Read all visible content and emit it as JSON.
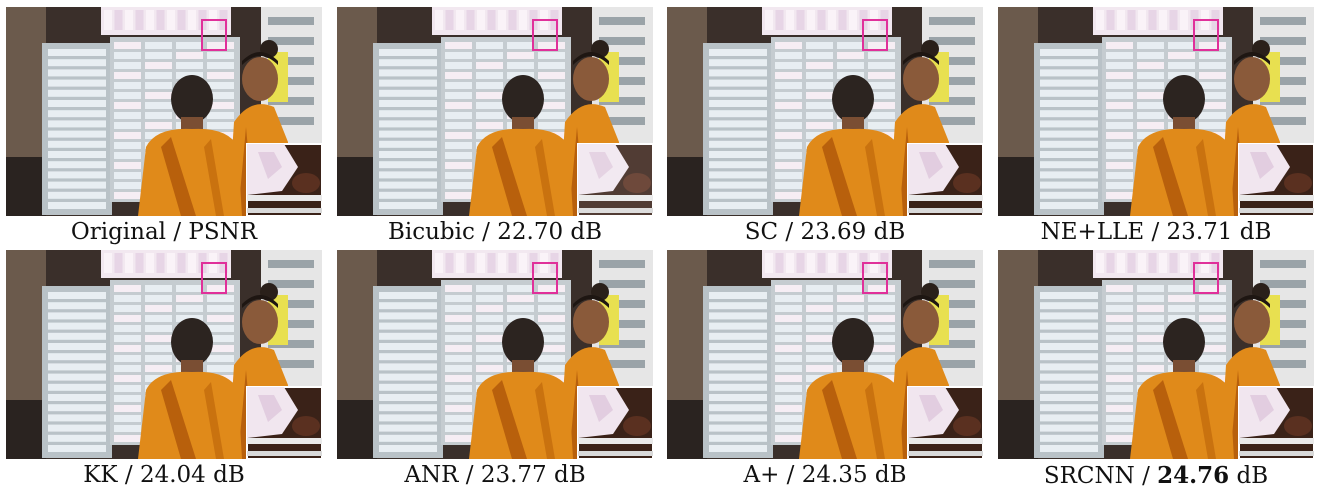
{
  "panels": [
    {
      "method": "Original",
      "sep": " / ",
      "value": "PSNR",
      "bold": false,
      "unit": ""
    },
    {
      "method": "Bicubic",
      "sep": " / ",
      "value": "22.70",
      "bold": false,
      "unit": " dB"
    },
    {
      "method": "SC",
      "sep": " / ",
      "value": "23.69",
      "bold": false,
      "unit": " dB"
    },
    {
      "method": "NE+LLE",
      "sep": " / ",
      "value": "23.71",
      "bold": false,
      "unit": " dB"
    },
    {
      "method": "KK",
      "sep": " / ",
      "value": "24.04",
      "bold": false,
      "unit": " dB"
    },
    {
      "method": "ANR",
      "sep": " / ",
      "value": "23.77",
      "bold": false,
      "unit": " dB"
    },
    {
      "method": "A+",
      "sep": " / ",
      "value": "24.35",
      "bold": false,
      "unit": " dB"
    },
    {
      "method": "SRCNN",
      "sep": " / ",
      "value": "24.76",
      "bold": true,
      "unit": " dB"
    }
  ],
  "colors": {
    "robe": "#e08a1a",
    "robe_shadow": "#b8600c",
    "highlight_box": "#e0309a",
    "board": "#e8eef2",
    "background_dark": "#3a2f2a"
  }
}
